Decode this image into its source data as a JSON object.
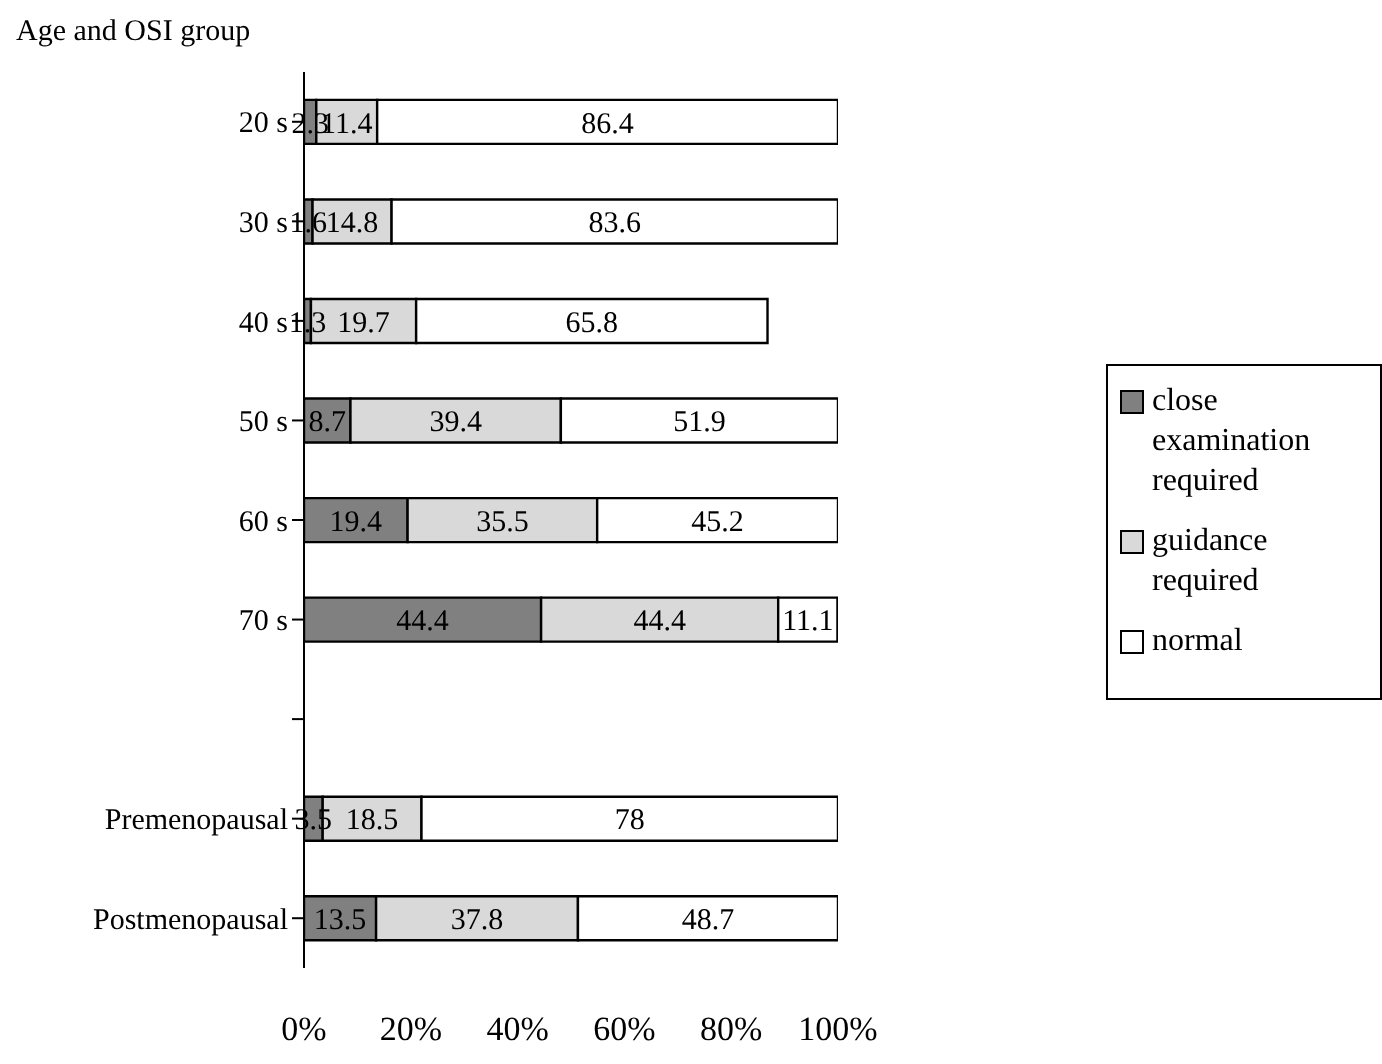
{
  "chart_data": {
    "type": "bar",
    "orientation": "horizontal",
    "stacked": true,
    "ylabel": "Age and OSI group",
    "categories": [
      "20 s",
      "30 s",
      "40 s",
      "50 s",
      "60 s",
      "70 s",
      null,
      "Premenopausal",
      "Postmenopausal"
    ],
    "series": [
      {
        "name": "close examination required",
        "color": "#808080",
        "values": [
          2.3,
          1.6,
          1.3,
          8.7,
          19.4,
          44.4,
          null,
          3.5,
          13.5
        ]
      },
      {
        "name": "guidance required",
        "color": "#d9d9d9",
        "values": [
          11.4,
          14.8,
          19.7,
          39.4,
          35.5,
          44.4,
          null,
          18.5,
          37.8
        ]
      },
      {
        "name": "normal",
        "color": "#ffffff",
        "values": [
          86.4,
          83.6,
          65.8,
          51.9,
          45.2,
          11.1,
          null,
          78,
          48.7
        ]
      }
    ],
    "xlim": [
      0,
      100
    ],
    "xticks": [
      {
        "value": 0,
        "label": "0%"
      },
      {
        "value": 20,
        "label": "20%"
      },
      {
        "value": 40,
        "label": "40%"
      },
      {
        "value": 60,
        "label": "60%"
      },
      {
        "value": 80,
        "label": "80%"
      },
      {
        "value": 100,
        "label": "100%"
      }
    ],
    "data_labels": true,
    "legend": "right",
    "grid": false
  }
}
